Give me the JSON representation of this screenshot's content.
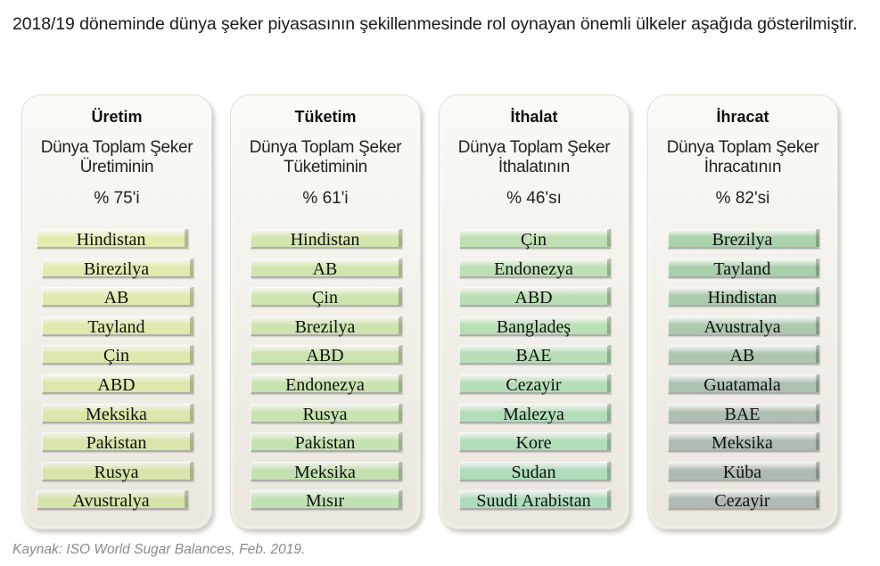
{
  "intro": {
    "text": "2018/19 döneminde dünya şeker piyasasının şekillenmesinde rol oynayan önemli ülkeler aşağıda gösterilmiştir."
  },
  "panels": [
    {
      "title": "Üretim",
      "subtitle_line1": "Dünya Toplam Şeker",
      "subtitle_line2": "Üretiminin",
      "percent": "%  75'i",
      "colors": [
        "#e8eab0",
        "#e6e9af",
        "#e4e8ae",
        "#e2e8ad",
        "#e0e7ad",
        "#dee6ac",
        "#dce6ab",
        "#dae5ab",
        "#d8e4aa",
        "#d6e3a9"
      ],
      "items": [
        "Hindistan",
        "Birezilya",
        "AB",
        "Tayland",
        "Çin",
        "ABD",
        "Meksika",
        "Pakistan",
        "Rusya",
        "Avustralya"
      ]
    },
    {
      "title": "Tüketim",
      "subtitle_line1": "Dünya Toplam Şeker",
      "subtitle_line2": "Tüketiminin",
      "percent": "% 61'i",
      "colors": [
        "#d3e6ad",
        "#d1e6ae",
        "#cfe5ae",
        "#cde4af",
        "#cbe4af",
        "#c9e3b0",
        "#c7e3b0",
        "#c5e2b1",
        "#c3e1b1",
        "#c1e1b2"
      ],
      "items": [
        "Hindistan",
        "AB",
        "Çin",
        "Brezilya",
        "ABD",
        "Endonezya",
        "Rusya",
        "Pakistan",
        "Meksika",
        "Mısır"
      ]
    },
    {
      "title": "İthalat",
      "subtitle_line1": "Dünya Toplam Şeker",
      "subtitle_line2": "İthalatının",
      "percent": "% 46'sı",
      "colors": [
        "#bfe0b3",
        "#bde0b4",
        "#bbdfb5",
        "#b9dfb6",
        "#b7deb7",
        "#b5deb8",
        "#b3ddb9",
        "#b1ddba",
        "#afdcbb",
        "#addcbc"
      ],
      "items": [
        "Çin",
        "Endonezya",
        "ABD",
        "Bangladeş",
        "BAE",
        "Cezayir",
        "Malezya",
        "Kore",
        "Sudan",
        "Suudi Arabistan"
      ]
    },
    {
      "title": "İhracat",
      "subtitle_line1": "Dünya Toplam Şeker",
      "subtitle_line2": "İhracatının",
      "percent": "% 82'si",
      "colors": [
        "#aad2ac",
        "#aacfac",
        "#abccad",
        "#acc9ae",
        "#adc6af",
        "#adc3b0",
        "#aec0b1",
        "#afbdb2",
        "#b0bbb3",
        "#b1b9b4"
      ],
      "items": [
        "Brezilya",
        "Tayland",
        "Hindistan",
        "Avustralya",
        "AB",
        "Guatamala",
        "BAE",
        "Meksika",
        "Küba",
        "Cezayir"
      ]
    }
  ],
  "source": {
    "text": "Kaynak: ISO World Sugar Balances, Feb. 2019."
  }
}
